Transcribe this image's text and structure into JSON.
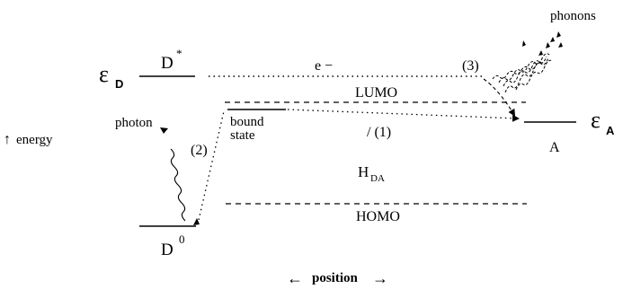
{
  "labels": {
    "eps_d_main": "ε",
    "eps_d_sub": "D",
    "d_star_main": "D",
    "d_star_sup": "*",
    "electron": "e −",
    "step3": "(3)",
    "phonons": "phonons",
    "lumo": "LUMO",
    "bound_line1": "bound",
    "bound_line2": "state",
    "photon": "photon",
    "step2": "(2)",
    "step1": "/ (1)",
    "energy": "energy",
    "energy_arrow": "↑",
    "eps_a_main": "ε",
    "eps_a_sub": "A",
    "acceptor": "A",
    "hda_main": "H",
    "hda_sub": "DA",
    "homo": "HOMO",
    "d0_main": "D",
    "d0_sup": "0",
    "position_left_arrow": "←",
    "position": "position",
    "position_right_arrow": "→"
  }
}
